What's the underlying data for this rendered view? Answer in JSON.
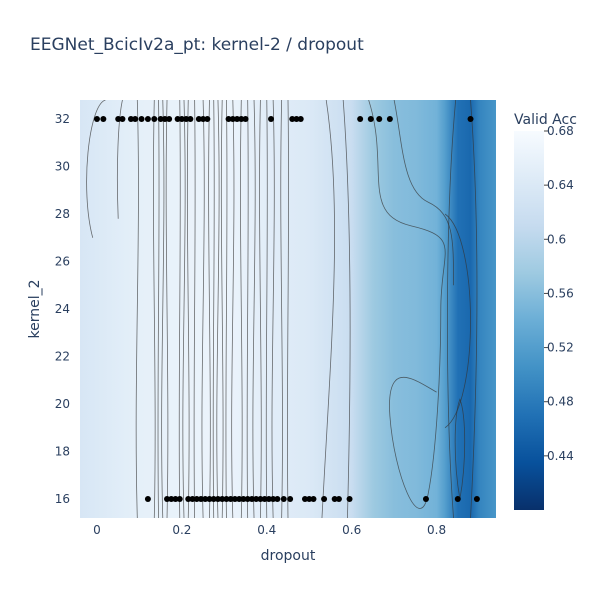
{
  "chart_data": {
    "type": "contour",
    "title": "EEGNet_BcicIv2a_pt: kernel-2 / dropout",
    "xlabel": "dropout",
    "ylabel": "kernel_2",
    "xlim": [
      -0.04,
      0.94
    ],
    "ylim": [
      15.2,
      32.8
    ],
    "x_ticks": [
      0,
      0.2,
      0.4,
      0.6,
      0.8
    ],
    "x_tick_labels": [
      "0",
      "0.2",
      "0.4",
      "0.6",
      "0.8"
    ],
    "y_ticks": [
      16,
      18,
      20,
      22,
      24,
      26,
      28,
      30,
      32
    ],
    "y_tick_labels": [
      "16",
      "18",
      "20",
      "22",
      "24",
      "26",
      "28",
      "30",
      "32"
    ],
    "colorbar": {
      "title": "Valid Acc",
      "range": [
        0.4,
        0.68
      ],
      "ticks": [
        0.44,
        0.48,
        0.52,
        0.56,
        0.6,
        0.64,
        0.68
      ],
      "tick_labels": [
        "0.44",
        "0.48",
        "0.52",
        "0.56",
        "0.6",
        "0.64",
        "0.68"
      ],
      "colorscale": [
        "#08306b",
        "#08519c",
        "#2171b5",
        "#4292c6",
        "#6baed6",
        "#9ecae1",
        "#c6dbef",
        "#deebf7",
        "#f7fbff"
      ]
    },
    "accuracy_profile": {
      "dropout": [
        -0.04,
        0.0,
        0.1,
        0.2,
        0.3,
        0.4,
        0.5,
        0.6,
        0.65,
        0.7,
        0.75,
        0.8,
        0.82,
        0.85,
        0.88,
        0.9,
        0.94
      ],
      "valid_acc": [
        0.635,
        0.64,
        0.655,
        0.66,
        0.665,
        0.65,
        0.64,
        0.615,
        0.575,
        0.56,
        0.555,
        0.545,
        0.52,
        0.47,
        0.46,
        0.49,
        0.51
      ]
    },
    "trials": {
      "kernel_32_dropout": [
        0.0,
        0.015,
        0.05,
        0.06,
        0.08,
        0.09,
        0.105,
        0.12,
        0.135,
        0.15,
        0.16,
        0.17,
        0.19,
        0.2,
        0.21,
        0.22,
        0.24,
        0.25,
        0.26,
        0.31,
        0.32,
        0.33,
        0.34,
        0.35,
        0.41,
        0.46,
        0.47,
        0.48,
        0.62,
        0.645,
        0.665,
        0.69,
        0.88
      ],
      "kernel_16_dropout": [
        0.12,
        0.165,
        0.175,
        0.185,
        0.195,
        0.215,
        0.225,
        0.235,
        0.245,
        0.255,
        0.265,
        0.275,
        0.285,
        0.295,
        0.305,
        0.315,
        0.325,
        0.335,
        0.345,
        0.355,
        0.365,
        0.375,
        0.385,
        0.395,
        0.405,
        0.415,
        0.425,
        0.44,
        0.455,
        0.49,
        0.5,
        0.51,
        0.535,
        0.56,
        0.57,
        0.595,
        0.775,
        0.85,
        0.895
      ]
    }
  }
}
